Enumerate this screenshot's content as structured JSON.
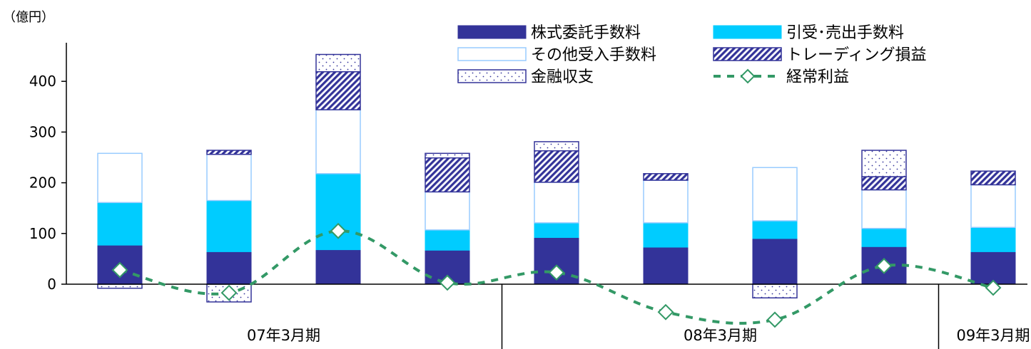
{
  "chart_data": {
    "type": "bar",
    "stacked": true,
    "unit_label": "（億円）",
    "ylim": [
      -40,
      480
    ],
    "yticks": [
      0,
      100,
      200,
      300,
      400
    ],
    "grid": false,
    "legend_position": "top-right",
    "groups": [
      {
        "label": "07年3月期",
        "start": 0,
        "end": 3
      },
      {
        "label": "08年3月期",
        "start": 4,
        "end": 7
      },
      {
        "label": "09年3月期",
        "start": 8,
        "end": 8
      }
    ],
    "series": [
      {
        "name": "株式委託手数料",
        "kind": "bar",
        "pattern": "solid-navy",
        "color": "#333399",
        "values": [
          77,
          64,
          68,
          67,
          92,
          73,
          90,
          74,
          64
        ]
      },
      {
        "name": "引受･売出手数料",
        "kind": "bar",
        "pattern": "solid-cyan",
        "color": "#00CCFF",
        "values": [
          84,
          101,
          150,
          40,
          29,
          48,
          35,
          36,
          48
        ]
      },
      {
        "name": "その他受入手数料",
        "kind": "bar",
        "pattern": "white-outline",
        "color": "#99CCFF",
        "values": [
          97,
          91,
          126,
          75,
          80,
          84,
          105,
          76,
          84
        ]
      },
      {
        "name": "トレーディング損益",
        "kind": "bar",
        "pattern": "diagonal-hatch",
        "color": "#333399",
        "values": [
          0,
          8,
          75,
          67,
          62,
          13,
          0,
          26,
          27
        ]
      },
      {
        "name": "金融収支",
        "kind": "bar",
        "pattern": "dots",
        "color": "#333399",
        "values": [
          -8,
          -35,
          34,
          9,
          18,
          0,
          -27,
          52,
          0
        ]
      },
      {
        "name": "経常利益",
        "kind": "line",
        "style": "dashed-diamond",
        "color": "#339966",
        "values": [
          28,
          -17,
          105,
          3,
          23,
          -55,
          -70,
          36,
          -7
        ]
      }
    ]
  }
}
